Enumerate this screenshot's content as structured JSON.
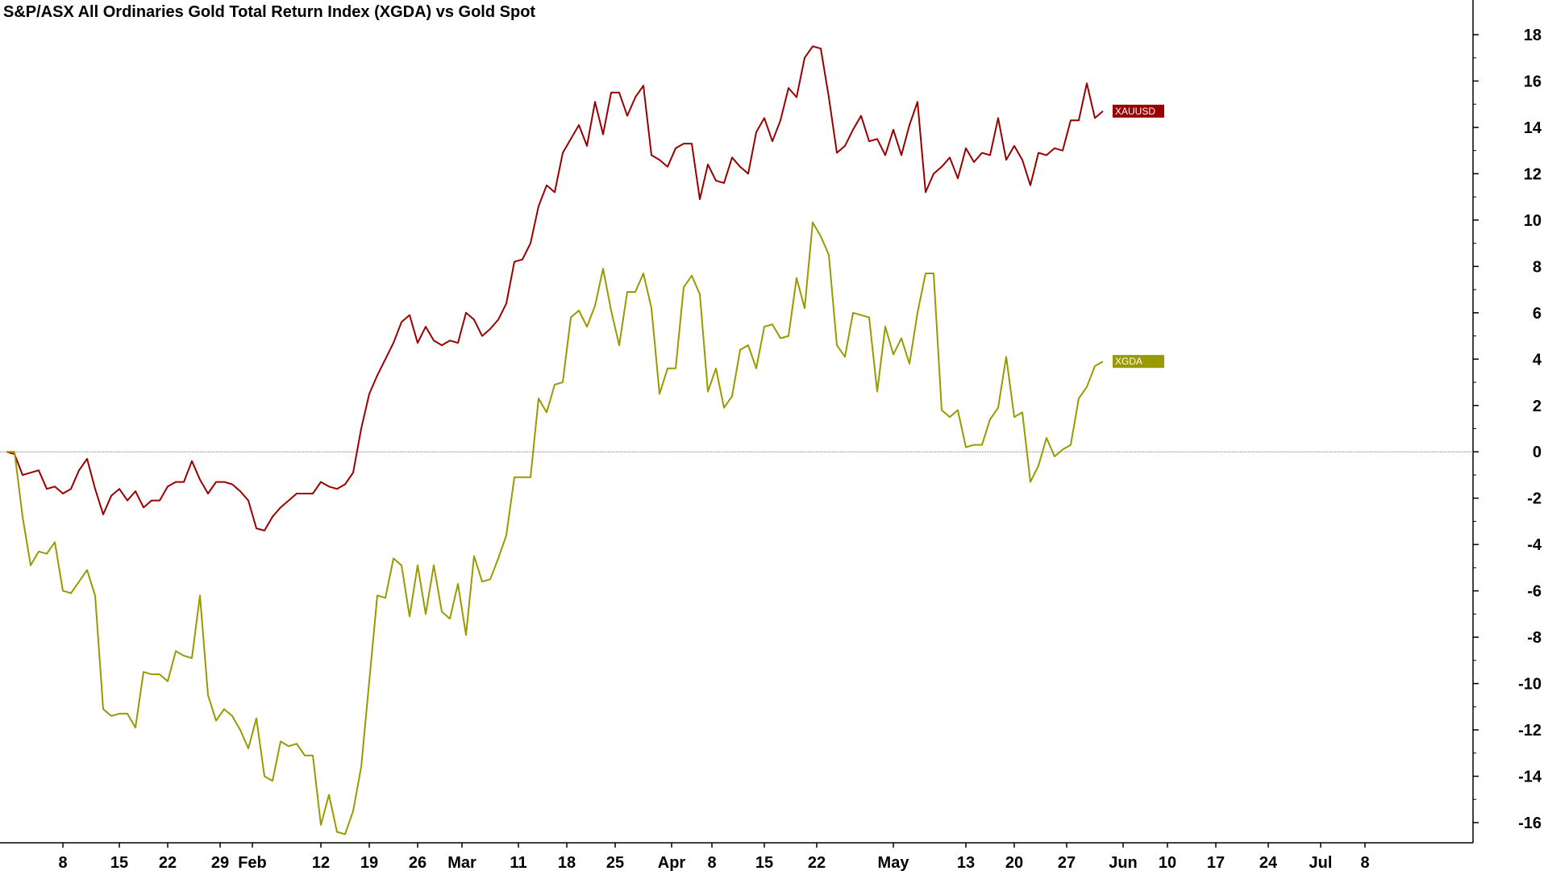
{
  "chart_data": {
    "type": "line",
    "title": "S&P/ASX All Ordinaries Gold Total Return Index (XGDA) vs Gold Spot",
    "xlabel": "",
    "ylabel": "",
    "ylim": [
      -17,
      19
    ],
    "yticks": [
      18,
      16,
      14,
      12,
      10,
      8,
      6,
      4,
      2,
      0,
      -2,
      -4,
      -6,
      -8,
      -10,
      -12,
      -14,
      -16
    ],
    "xlim": [
      0,
      168
    ],
    "xticks": [
      {
        "label": "8",
        "x": 7
      },
      {
        "label": "15",
        "x": 14
      },
      {
        "label": "22",
        "x": 20
      },
      {
        "label": "29",
        "x": 26.5
      },
      {
        "label": "Feb",
        "x": 30.5
      },
      {
        "label": "12",
        "x": 39
      },
      {
        "label": "19",
        "x": 45
      },
      {
        "label": "26",
        "x": 51
      },
      {
        "label": "Mar",
        "x": 56.5
      },
      {
        "label": "11",
        "x": 63.5
      },
      {
        "label": "18",
        "x": 69.5
      },
      {
        "label": "25",
        "x": 75.5
      },
      {
        "label": "Apr",
        "x": 82.5
      },
      {
        "label": "8",
        "x": 87.5
      },
      {
        "label": "15",
        "x": 94
      },
      {
        "label": "22",
        "x": 100.5
      },
      {
        "label": "May",
        "x": 110
      },
      {
        "label": "13",
        "x": 119
      },
      {
        "label": "20",
        "x": 125
      },
      {
        "label": "27",
        "x": 131.5
      },
      {
        "label": "Jun",
        "x": 138.5
      },
      {
        "label": "10",
        "x": 144
      },
      {
        "label": "17",
        "x": 150
      },
      {
        "label": "24",
        "x": 156.5
      },
      {
        "label": "Jul",
        "x": 163
      },
      {
        "label": "8",
        "x": 168.5
      }
    ],
    "grid": false,
    "zero_line": true,
    "series": [
      {
        "name": "XAUUSD",
        "color": "#990000",
        "points": [
          [
            0,
            0
          ],
          [
            1,
            -0.1
          ],
          [
            2,
            -1.0
          ],
          [
            3,
            -0.9
          ],
          [
            4,
            -0.8
          ],
          [
            5,
            -1.6
          ],
          [
            6,
            -1.5
          ],
          [
            7,
            -1.8
          ],
          [
            8,
            -1.6
          ],
          [
            9,
            -0.8
          ],
          [
            10,
            -0.3
          ],
          [
            11,
            -1.6
          ],
          [
            12,
            -2.7
          ],
          [
            13,
            -1.9
          ],
          [
            14,
            -1.6
          ],
          [
            15,
            -2.1
          ],
          [
            16,
            -1.7
          ],
          [
            17,
            -2.4
          ],
          [
            18,
            -2.1
          ],
          [
            19,
            -2.1
          ],
          [
            20,
            -1.5
          ],
          [
            21,
            -1.3
          ],
          [
            22,
            -1.3
          ],
          [
            23,
            -0.4
          ],
          [
            24,
            -1.2
          ],
          [
            25,
            -1.8
          ],
          [
            26,
            -1.3
          ],
          [
            27,
            -1.3
          ],
          [
            28,
            -1.4
          ],
          [
            29,
            -1.7
          ],
          [
            30,
            -2.1
          ],
          [
            31,
            -3.3
          ],
          [
            32,
            -3.4
          ],
          [
            33,
            -2.8
          ],
          [
            34,
            -2.4
          ],
          [
            35,
            -2.1
          ],
          [
            36,
            -1.8
          ],
          [
            37,
            -1.8
          ],
          [
            38,
            -1.8
          ],
          [
            39,
            -1.3
          ],
          [
            40,
            -1.5
          ],
          [
            41,
            -1.6
          ],
          [
            42,
            -1.4
          ],
          [
            43,
            -0.9
          ],
          [
            44,
            1.0
          ],
          [
            45,
            2.5
          ],
          [
            46,
            3.3
          ],
          [
            47,
            4.0
          ],
          [
            48,
            4.7
          ],
          [
            49,
            5.6
          ],
          [
            50,
            5.9
          ],
          [
            51,
            4.7
          ],
          [
            52,
            5.4
          ],
          [
            53,
            4.8
          ],
          [
            54,
            4.6
          ],
          [
            55,
            4.8
          ],
          [
            56,
            4.7
          ],
          [
            57,
            6.0
          ],
          [
            58,
            5.7
          ],
          [
            59,
            5.0
          ],
          [
            60,
            5.3
          ],
          [
            61,
            5.7
          ],
          [
            62,
            6.4
          ],
          [
            63,
            8.2
          ],
          [
            64,
            8.3
          ],
          [
            65,
            9.0
          ],
          [
            66,
            10.6
          ],
          [
            67,
            11.5
          ],
          [
            68,
            11.2
          ],
          [
            69,
            12.9
          ],
          [
            70,
            13.5
          ],
          [
            71,
            14.1
          ],
          [
            72,
            13.2
          ],
          [
            73,
            15.1
          ],
          [
            74,
            13.7
          ],
          [
            75,
            15.5
          ],
          [
            76,
            15.5
          ],
          [
            77,
            14.5
          ],
          [
            78,
            15.3
          ],
          [
            79,
            15.8
          ],
          [
            80,
            12.8
          ],
          [
            81,
            12.6
          ],
          [
            82,
            12.3
          ],
          [
            83,
            13.1
          ],
          [
            84,
            13.3
          ],
          [
            85,
            13.3
          ],
          [
            86,
            10.9
          ],
          [
            87,
            12.4
          ],
          [
            88,
            11.7
          ],
          [
            89,
            11.6
          ],
          [
            90,
            12.7
          ],
          [
            91,
            12.3
          ],
          [
            92,
            12.0
          ],
          [
            93,
            13.8
          ],
          [
            94,
            14.4
          ],
          [
            95,
            13.4
          ],
          [
            96,
            14.3
          ],
          [
            97,
            15.7
          ],
          [
            98,
            15.3
          ],
          [
            99,
            17.0
          ],
          [
            100,
            17.5
          ],
          [
            101,
            17.4
          ],
          [
            102,
            15.3
          ],
          [
            103,
            12.9
          ],
          [
            104,
            13.2
          ],
          [
            105,
            13.9
          ],
          [
            106,
            14.5
          ],
          [
            107,
            13.4
          ],
          [
            108,
            13.5
          ],
          [
            109,
            12.8
          ],
          [
            110,
            13.9
          ],
          [
            111,
            12.8
          ],
          [
            112,
            14.1
          ],
          [
            113,
            15.1
          ],
          [
            114,
            11.2
          ],
          [
            115,
            12.0
          ],
          [
            116,
            12.3
          ],
          [
            117,
            12.7
          ],
          [
            118,
            11.8
          ],
          [
            119,
            13.1
          ],
          [
            120,
            12.5
          ],
          [
            121,
            12.9
          ],
          [
            122,
            12.8
          ],
          [
            123,
            14.4
          ],
          [
            124,
            12.6
          ],
          [
            125,
            13.2
          ],
          [
            126,
            12.6
          ],
          [
            127,
            11.5
          ],
          [
            128,
            12.9
          ],
          [
            129,
            12.8
          ],
          [
            130,
            13.1
          ],
          [
            131,
            13.0
          ],
          [
            132,
            14.3
          ],
          [
            133,
            14.3
          ],
          [
            134,
            15.9
          ],
          [
            135,
            14.4
          ],
          [
            136,
            14.7
          ]
        ]
      },
      {
        "name": "XGDA",
        "color": "#999900",
        "points": [
          [
            0,
            0
          ],
          [
            1,
            0
          ],
          [
            2,
            -2.8
          ],
          [
            3,
            -4.9
          ],
          [
            4,
            -4.3
          ],
          [
            5,
            -4.4
          ],
          [
            6,
            -3.9
          ],
          [
            7,
            -6.0
          ],
          [
            8,
            -6.1
          ],
          [
            9,
            -5.6
          ],
          [
            10,
            -5.1
          ],
          [
            11,
            -6.2
          ],
          [
            12,
            -11.1
          ],
          [
            13,
            -11.4
          ],
          [
            14,
            -11.3
          ],
          [
            15,
            -11.3
          ],
          [
            16,
            -11.9
          ],
          [
            17,
            -9.5
          ],
          [
            18,
            -9.6
          ],
          [
            19,
            -9.6
          ],
          [
            20,
            -9.9
          ],
          [
            21,
            -8.6
          ],
          [
            22,
            -8.8
          ],
          [
            23,
            -8.9
          ],
          [
            24,
            -6.2
          ],
          [
            25,
            -10.5
          ],
          [
            26,
            -11.6
          ],
          [
            27,
            -11.1
          ],
          [
            28,
            -11.4
          ],
          [
            29,
            -12.0
          ],
          [
            30,
            -12.8
          ],
          [
            31,
            -11.5
          ],
          [
            32,
            -14.0
          ],
          [
            33,
            -14.2
          ],
          [
            34,
            -12.5
          ],
          [
            35,
            -12.7
          ],
          [
            36,
            -12.6
          ],
          [
            37,
            -13.1
          ],
          [
            38,
            -13.1
          ],
          [
            39,
            -16.1
          ],
          [
            40,
            -14.8
          ],
          [
            41,
            -16.4
          ],
          [
            42,
            -16.5
          ],
          [
            43,
            -15.5
          ],
          [
            44,
            -13.6
          ],
          [
            45,
            -9.9
          ],
          [
            46,
            -6.2
          ],
          [
            47,
            -6.3
          ],
          [
            48,
            -4.6
          ],
          [
            49,
            -4.9
          ],
          [
            50,
            -7.1
          ],
          [
            51,
            -4.9
          ],
          [
            52,
            -7.0
          ],
          [
            53,
            -4.9
          ],
          [
            54,
            -6.9
          ],
          [
            55,
            -7.2
          ],
          [
            56,
            -5.7
          ],
          [
            57,
            -7.9
          ],
          [
            58,
            -4.5
          ],
          [
            59,
            -5.6
          ],
          [
            60,
            -5.5
          ],
          [
            61,
            -4.6
          ],
          [
            62,
            -3.6
          ],
          [
            63,
            -1.1
          ],
          [
            64,
            -1.1
          ],
          [
            65,
            -1.1
          ],
          [
            66,
            2.3
          ],
          [
            67,
            1.7
          ],
          [
            68,
            2.9
          ],
          [
            69,
            3.0
          ],
          [
            70,
            5.8
          ],
          [
            71,
            6.1
          ],
          [
            72,
            5.4
          ],
          [
            73,
            6.3
          ],
          [
            74,
            7.9
          ],
          [
            75,
            6.1
          ],
          [
            76,
            4.6
          ],
          [
            77,
            6.9
          ],
          [
            78,
            6.9
          ],
          [
            79,
            7.7
          ],
          [
            80,
            6.2
          ],
          [
            81,
            2.5
          ],
          [
            82,
            3.6
          ],
          [
            83,
            3.6
          ],
          [
            84,
            7.1
          ],
          [
            85,
            7.6
          ],
          [
            86,
            6.8
          ],
          [
            87,
            2.6
          ],
          [
            88,
            3.6
          ],
          [
            89,
            1.9
          ],
          [
            90,
            2.4
          ],
          [
            91,
            4.4
          ],
          [
            92,
            4.6
          ],
          [
            93,
            3.6
          ],
          [
            94,
            5.4
          ],
          [
            95,
            5.5
          ],
          [
            96,
            4.9
          ],
          [
            97,
            5.0
          ],
          [
            98,
            7.5
          ],
          [
            99,
            6.2
          ],
          [
            100,
            9.9
          ],
          [
            101,
            9.3
          ],
          [
            102,
            8.5
          ],
          [
            103,
            4.6
          ],
          [
            104,
            4.1
          ],
          [
            105,
            6.0
          ],
          [
            106,
            5.9
          ],
          [
            107,
            5.8
          ],
          [
            108,
            2.6
          ],
          [
            109,
            5.4
          ],
          [
            110,
            4.2
          ],
          [
            111,
            4.9
          ],
          [
            112,
            3.8
          ],
          [
            113,
            6.0
          ],
          [
            114,
            7.7
          ],
          [
            115,
            7.7
          ],
          [
            116,
            1.8
          ],
          [
            117,
            1.5
          ],
          [
            118,
            1.8
          ],
          [
            119,
            0.2
          ],
          [
            120,
            0.3
          ],
          [
            121,
            0.3
          ],
          [
            122,
            1.4
          ],
          [
            123,
            1.9
          ],
          [
            124,
            4.1
          ],
          [
            125,
            1.5
          ],
          [
            126,
            1.7
          ],
          [
            127,
            -1.3
          ],
          [
            128,
            -0.6
          ],
          [
            129,
            0.6
          ],
          [
            130,
            -0.2
          ],
          [
            131,
            0.1
          ],
          [
            132,
            0.3
          ],
          [
            133,
            2.3
          ],
          [
            134,
            2.8
          ],
          [
            135,
            3.7
          ],
          [
            136,
            3.9
          ]
        ]
      }
    ]
  }
}
